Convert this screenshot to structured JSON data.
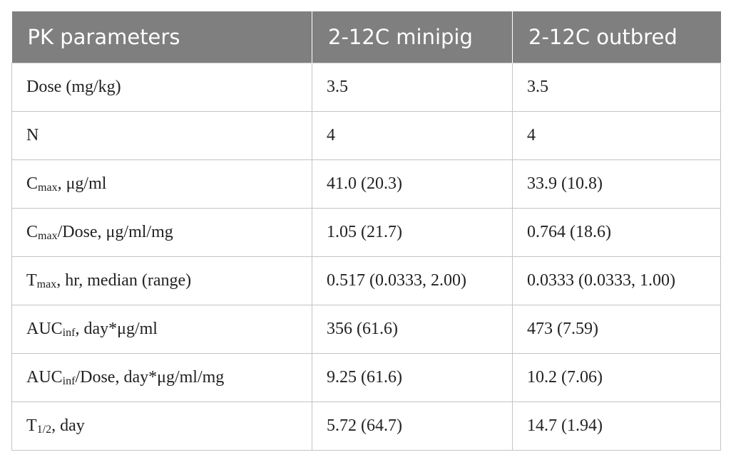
{
  "table": {
    "header": [
      "PK parameters",
      "2-12C minipig",
      "2-12C outbred"
    ],
    "rows": [
      [
        [
          {
            "text": "Dose (mg/kg)"
          }
        ],
        "3.5",
        "3.5"
      ],
      [
        [
          {
            "text": "N"
          }
        ],
        "4",
        "4"
      ],
      [
        [
          {
            "text": "C"
          },
          {
            "text": "max",
            "sub": true
          },
          {
            "text": ", μg/ml"
          }
        ],
        "41.0 (20.3)",
        "33.9 (10.8)"
      ],
      [
        [
          {
            "text": "C"
          },
          {
            "text": "max",
            "sub": true
          },
          {
            "text": "/Dose, μg/ml/mg"
          }
        ],
        "1.05 (21.7)",
        "0.764 (18.6)"
      ],
      [
        [
          {
            "text": "T"
          },
          {
            "text": "max",
            "sub": true
          },
          {
            "text": ", hr, median (range)"
          }
        ],
        "0.517 (0.0333, 2.00)",
        "0.0333 (0.0333, 1.00)"
      ],
      [
        [
          {
            "text": "AUC"
          },
          {
            "text": "inf",
            "sub": true
          },
          {
            "text": ", day*μg/ml"
          }
        ],
        "356 (61.6)",
        "473 (7.59)"
      ],
      [
        [
          {
            "text": "AUC"
          },
          {
            "text": "inf",
            "sub": true
          },
          {
            "text": "/Dose, day*μg/ml/mg"
          }
        ],
        "9.25 (61.6)",
        "10.2 (7.06)"
      ],
      [
        [
          {
            "text": "T"
          },
          {
            "text": "1/2",
            "sub": true
          },
          {
            "text": ", day"
          }
        ],
        "5.72 (64.7)",
        "14.7 (1.94)"
      ]
    ]
  }
}
